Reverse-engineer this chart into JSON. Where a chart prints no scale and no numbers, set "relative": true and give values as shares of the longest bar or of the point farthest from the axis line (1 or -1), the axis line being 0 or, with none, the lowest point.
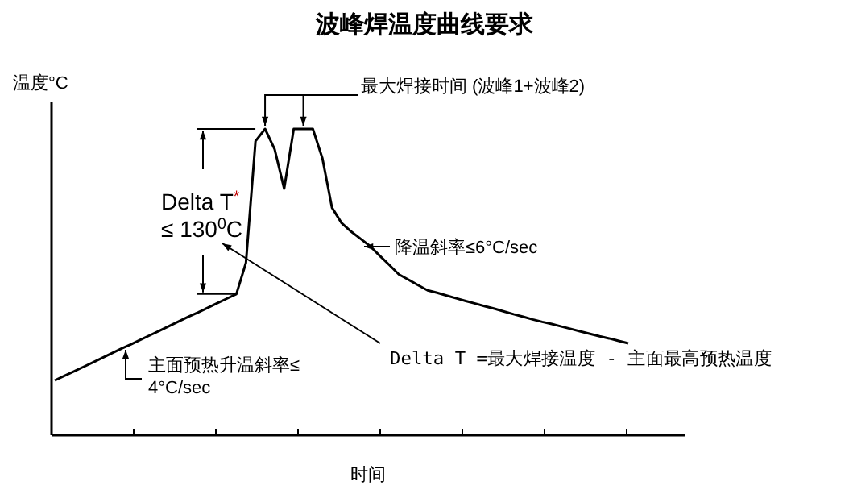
{
  "chart_data": {
    "type": "line",
    "title": "波峰焊温度曲线要求",
    "xlabel": "时间",
    "ylabel": "温度°C",
    "relative": true,
    "categories": [
      null,
      null,
      null,
      null,
      null,
      null,
      null,
      null,
      null,
      null,
      null,
      null,
      null,
      null,
      null,
      null,
      null,
      null,
      null,
      null,
      null,
      null,
      null,
      null,
      null,
      null,
      null,
      null,
      null,
      null,
      null,
      null,
      null,
      null,
      null,
      null,
      null,
      null,
      null,
      null,
      null,
      null,
      null,
      null,
      null,
      null,
      null,
      null,
      null,
      null,
      null,
      null,
      null,
      null,
      null,
      null,
      null,
      null,
      null,
      null,
      null
    ],
    "series": [
      {
        "color": "#000000",
        "values": [
          0.179,
          0.194,
          0.208,
          0.223,
          0.238,
          0.253,
          0.268,
          0.283,
          0.297,
          0.312,
          0.327,
          0.342,
          0.357,
          0.372,
          0.387,
          0.401,
          0.416,
          0.431,
          0.446,
          0.461,
          0.563,
          0.96,
          1,
          0.934,
          0.805,
          1,
          1,
          1,
          0.904,
          0.743,
          0.693,
          0.665,
          0.641,
          0.617,
          0.586,
          0.556,
          0.525,
          0.508,
          0.49,
          0.473,
          0.465,
          0.456,
          0.447,
          0.438,
          0.43,
          0.421,
          0.413,
          0.404,
          0.395,
          0.387,
          0.378,
          0.37,
          0.363,
          0.355,
          0.347,
          0.339,
          0.331,
          0.323,
          0.316,
          0.308,
          0.3
        ]
      }
    ],
    "annotations": [
      "最大焊接时间 (波峰1+波峰2)",
      "Delta T$^{*}$",
      "≤ 130$^{0}$C",
      "降温斜率≤6°C/sec",
      "Delta T =最大焊接温度 - 主面最高预热温度",
      "主面预热升温斜率≤",
      "4°C/sec"
    ],
    "grid": false,
    "marker": "none",
    "line_style": "solid"
  }
}
